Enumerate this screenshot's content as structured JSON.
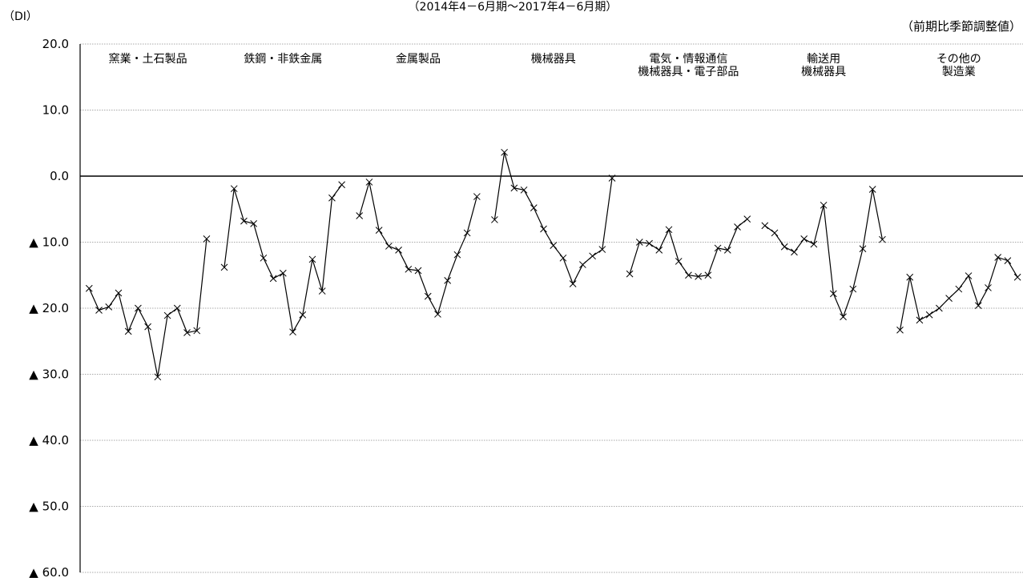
{
  "chart_data": {
    "type": "line",
    "title": "（2014年4－6月期～2017年4－6月期）",
    "ylabel": "（DI）",
    "note": "（前期比季節調整値）",
    "ylim": [
      -60,
      20
    ],
    "yticks": [
      {
        "value": 20,
        "label": "20.0"
      },
      {
        "value": 10,
        "label": "10.0"
      },
      {
        "value": 0,
        "label": "0.0"
      },
      {
        "value": -10,
        "label": "▲ 10.0"
      },
      {
        "value": -20,
        "label": "▲ 20.0"
      },
      {
        "value": -30,
        "label": "▲ 30.0"
      },
      {
        "value": -40,
        "label": "▲ 40.0"
      },
      {
        "value": -50,
        "label": "▲ 50.0"
      },
      {
        "value": -60,
        "label": "▲ 60.0"
      }
    ],
    "grid": true,
    "marker": "x",
    "points_per_series": 13,
    "series": [
      {
        "name": "窯業・土石製品",
        "label_lines": [
          "窯業・土石製品"
        ],
        "values": [
          -17.0,
          -20.3,
          -19.8,
          -17.7,
          -23.5,
          -20.0,
          -22.8,
          -30.4,
          -21.1,
          -20.0,
          -23.7,
          -23.4,
          -9.5
        ]
      },
      {
        "name": "鉄鋼・非鉄金属",
        "label_lines": [
          "鉄鋼・非鉄金属"
        ],
        "values": [
          -13.8,
          -1.9,
          -6.8,
          -7.2,
          -12.4,
          -15.5,
          -14.7,
          -23.6,
          -21.0,
          -12.6,
          -17.4,
          -3.3,
          -1.3
        ]
      },
      {
        "name": "金属製品",
        "label_lines": [
          "金属製品"
        ],
        "values": [
          -6.0,
          -0.9,
          -8.2,
          -10.6,
          -11.2,
          -14.1,
          -14.3,
          -18.2,
          -20.9,
          -15.8,
          -11.9,
          -8.6,
          -3.1
        ]
      },
      {
        "name": "機械器具",
        "label_lines": [
          "機械器具"
        ],
        "values": [
          -6.6,
          3.6,
          -1.8,
          -2.1,
          -4.8,
          -8.0,
          -10.5,
          -12.4,
          -16.3,
          -13.4,
          -12.1,
          -11.1,
          -0.3
        ]
      },
      {
        "name": "電気・情報通信機械器具・電子部品",
        "label_lines": [
          "電気・情報通信",
          "機械器具・電子部品"
        ],
        "values": [
          -14.8,
          -10.0,
          -10.2,
          -11.2,
          -8.1,
          -12.9,
          -15.0,
          -15.2,
          -15.0,
          -10.9,
          -11.2,
          -7.7,
          -6.5
        ]
      },
      {
        "name": "輸送用機械器具",
        "label_lines": [
          "輸送用",
          "機械器具"
        ],
        "values": [
          -7.5,
          -8.6,
          -10.7,
          -11.5,
          -9.5,
          -10.3,
          -4.4,
          -17.8,
          -21.3,
          -17.1,
          -11.0,
          -2.0,
          -9.6
        ]
      },
      {
        "name": "その他の製造業",
        "label_lines": [
          "その他の",
          "製造業"
        ],
        "values": [
          -23.3,
          -15.3,
          -21.8,
          -21.0,
          -20.0,
          -18.5,
          -17.1,
          -15.1,
          -19.6,
          -16.9,
          -12.3,
          -12.8,
          -15.3
        ]
      }
    ]
  }
}
